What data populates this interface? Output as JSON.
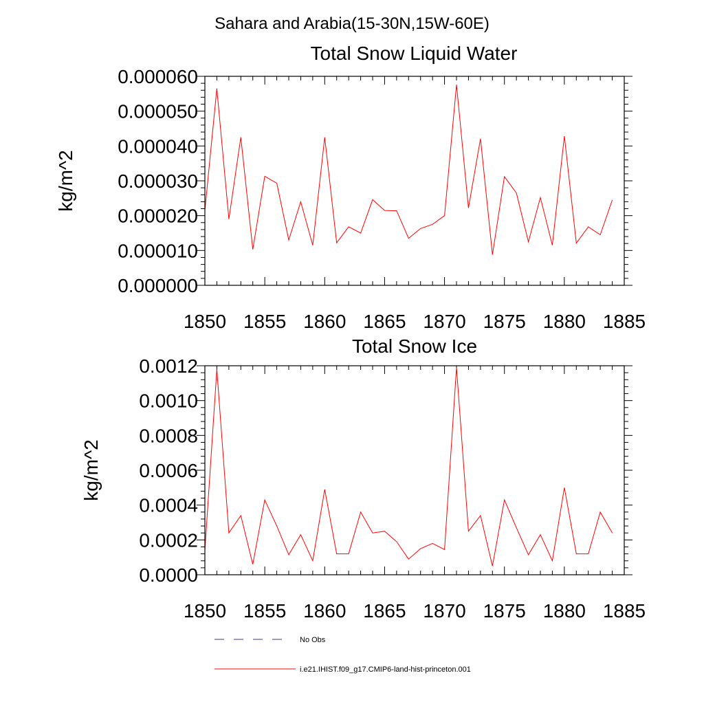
{
  "page": {
    "main_title": "Sahara and Arabia(15-30N,15W-60E)"
  },
  "chart_data": [
    {
      "type": "line",
      "title": "Total Snow Liquid Water",
      "xlabel": "",
      "ylabel": "kg/m^2",
      "xlim": [
        1850,
        1885
      ],
      "ylim": [
        0.0,
        6e-05
      ],
      "x_ticks": [
        "1850",
        "1855",
        "1860",
        "1865",
        "1870",
        "1875",
        "1880",
        "1885"
      ],
      "y_ticks": [
        "0.000000",
        "0.000010",
        "0.000020",
        "0.000030",
        "0.000040",
        "0.000050",
        "0.000060"
      ],
      "x": [
        1850,
        1851,
        1852,
        1853,
        1854,
        1855,
        1856,
        1857,
        1858,
        1859,
        1860,
        1861,
        1862,
        1863,
        1864,
        1865,
        1866,
        1867,
        1868,
        1869,
        1870,
        1871,
        1872,
        1873,
        1874,
        1875,
        1876,
        1877,
        1878,
        1879,
        1880,
        1881,
        1882,
        1883,
        1884
      ],
      "series": [
        {
          "name": "i.e21.IHIST.f09_g17.CMIP6-land-hist-princeton.001",
          "color": "#ff0000",
          "values": [
            2.15e-05,
            5.65e-05,
            1.9e-05,
            4.25e-05,
            1.03e-05,
            3.13e-05,
            2.93e-05,
            1.3e-05,
            2.4e-05,
            1.15e-05,
            4.25e-05,
            1.22e-05,
            1.68e-05,
            1.5e-05,
            2.46e-05,
            2.15e-05,
            2.14e-05,
            1.35e-05,
            1.63e-05,
            1.75e-05,
            2e-05,
            5.76e-05,
            2.22e-05,
            4.21e-05,
            8.8e-06,
            3.12e-05,
            2.65e-05,
            1.25e-05,
            2.52e-05,
            1.15e-05,
            4.28e-05,
            1.21e-05,
            1.68e-05,
            1.45e-05,
            2.45e-05
          ]
        }
      ]
    },
    {
      "type": "line",
      "title": "Total Snow Ice",
      "xlabel": "",
      "ylabel": "kg/m^2",
      "xlim": [
        1850,
        1885
      ],
      "ylim": [
        0.0,
        0.0012
      ],
      "x_ticks": [
        "1850",
        "1855",
        "1860",
        "1865",
        "1870",
        "1875",
        "1880",
        "1885"
      ],
      "y_ticks": [
        "0.0000",
        "0.0002",
        "0.0004",
        "0.0006",
        "0.0008",
        "0.0010",
        "0.0012"
      ],
      "x": [
        1850,
        1851,
        1852,
        1853,
        1854,
        1855,
        1856,
        1857,
        1858,
        1859,
        1860,
        1861,
        1862,
        1863,
        1864,
        1865,
        1866,
        1867,
        1868,
        1869,
        1870,
        1871,
        1872,
        1873,
        1874,
        1875,
        1876,
        1877,
        1878,
        1879,
        1880,
        1881,
        1882,
        1883,
        1884
      ],
      "series": [
        {
          "name": "i.e21.IHIST.f09_g17.CMIP6-land-hist-princeton.001",
          "color": "#ff0000",
          "values": [
            0.00014,
            0.00118,
            0.00024,
            0.00034,
            6e-05,
            0.00043,
            0.00028,
            0.000115,
            0.00023,
            8e-05,
            0.00049,
            0.00012,
            0.00012,
            0.00036,
            0.00024,
            0.00025,
            0.00019,
            9e-05,
            0.00015,
            0.00018,
            0.000145,
            0.00119,
            0.00025,
            0.00034,
            5e-05,
            0.00043,
            0.00027,
            0.000115,
            0.00023,
            8e-05,
            0.0005,
            0.00012,
            0.00012,
            0.00036,
            0.00024
          ]
        }
      ]
    }
  ],
  "legend": {
    "placement": "bottom",
    "items": [
      {
        "label": "No Obs",
        "color": "#3a3a8c",
        "style": "dashed"
      },
      {
        "label": "i.e21.IHIST.f09_g17.CMIP6-land-hist-princeton.001",
        "color": "#ff0000",
        "style": "solid"
      }
    ]
  }
}
